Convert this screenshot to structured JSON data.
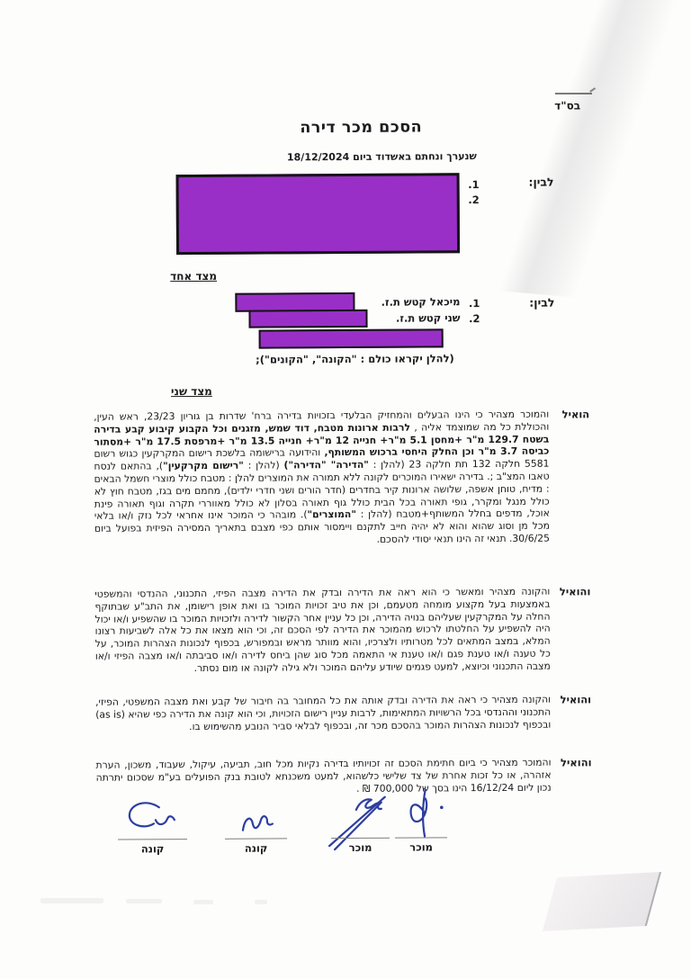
{
  "page": {
    "bsd": "בס\"ד",
    "title": "הסכם מכר דירה",
    "subtitle": "שנערך ונחתם באשדוד ביום  18/12/2024",
    "redaction_color": "#9a2fc8",
    "ink_color": "#2e3e9f"
  },
  "parties": {
    "first": {
      "label": "לבין:",
      "items": [
        "1.",
        "2."
      ],
      "side_note": "מצד אחד"
    },
    "second": {
      "label": "לבין:",
      "items": [
        {
          "num": "1.",
          "name": "מיכאל קטש ת.ז."
        },
        {
          "num": "2.",
          "name": "שני קטש ת.ז."
        }
      ],
      "collective": "(להלן יקראו כולם : \"הקונה\", \"הקונים\");",
      "side_note": "מצד שני"
    }
  },
  "recitals": [
    {
      "label": "הואיל",
      "runs": [
        {
          "t": "והמוכר מצהיר כי הינו הבעלים והמחזיק הבלעדי בזכויות בדירה ברח' שדרות בן גוריון 23/23, ראש העין, והכוללת כל מה שמוצמד אליה , ",
          "b": false
        },
        {
          "t": "לרבות ארונות מטבח, דוד שמש, מזגנים וכל הקבוע קיבוע קבע בדירה בשטח 129.7 מ\"ר +מחסן 5.1 מ\"ר+ חנייה 12 מ\"ר+ חנייה 13.5 מ\"ר +מרפסת 17.5 מ\"ר +מסתור כביסה 3.7 מ\"ר וכן החלק היחסי ברכוש המשותף,",
          "b": true
        },
        {
          "t": " והידועה ברישומה בלשכת רישום המקרקעין כגוש רשום 5581 חלקה 132 תת חלקה 23 (להלן : ",
          "b": false
        },
        {
          "t": "\"הדירה\" \"הדירה\")",
          "b": true
        },
        {
          "t": " (להלן : ",
          "b": false
        },
        {
          "t": "\"רישום מקרקעין\"",
          "b": true
        },
        {
          "t": "), בהתאם לנסח טאבו המצ\"ב ;. בדירה ישאירו המוכרים לקונה ללא תמורה את המוצרים להלן : מטבח כולל מוצרי חשמל הבאים : מדיח, טוחן אשפה, שלושה ארונות קיר בחדרים (חדר הורים ושני חדרי ילדים), מחמם מים בגז, מטבח חוץ לא כולל מנגל ומקרר, גופי תאורה בכל הבית כולל גוף תאורה בסלון לא כולל מאווררי תקרה וגוף תאורה פינת אוכל, מדפים בחלל המשותף+מטבח (להלן : ",
          "b": false
        },
        {
          "t": "\"המוצרים\"",
          "b": true
        },
        {
          "t": ").  מובהר כי המוכר אינו אחראי לכל נזק ו/או בלאי מכל מן וסוג שהוא והוא לא יהיה חייב לתקנם ויימסור אותם כפי מצבם בתאריך המסירה הפיזית בפועל ביום 30/6/25. תנאי זה הינו תנאי יסודי להסכם.",
          "b": false
        }
      ]
    },
    {
      "label": "והואיל",
      "runs": [
        {
          "t": "והקונה מצהיר ומאשר כי הוא ראה את הדירה ובדק את הדירה מצבה הפיזי, התכנוני, ההנדסי והמשפטי באמצעות בעל מקצוע מומחה מטעמם, וכן את טיב זכויות המוכר בו ואת אופן רישומן, את התב\"ע שבתוקף החלה על המקרקעין שעליהם בנויה הדירה, וכן כל עניין אחר הקשור לדירה ולזכויות המוכר בו שהשפיע ו/או יכול היה להשפיע על החלטתו לרכוש מהמוכר את הדירה לפי הסכם זה, וכי הוא מצאו את כל אלה לשביעות רצונו המלא, במצב המתאים לכל מטרותיו ולצרכיו, והוא מוותר מראש ובמפורש, בכפוף לנכונות הצהרות המוכר, על כל טענה ו/או טענת פגם ו/או טענת אי התאמה מכל סוג שהן ביחס לדירה ו/או סביבתה ו/או מצבה הפיזי ו/או מצבה התכנוני וכיוצא, למעט פגמים שיודע עליהם המוכר ולא גילה לקונה או מום נסתר.",
          "b": false
        }
      ]
    },
    {
      "label": "והואיל",
      "runs": [
        {
          "t": "והקונה מצהיר כי ראה את הדירה ובדק אותה את כל המחובר בה חיבור של קבע ואת מצבה המשפטי, הפיזי, התכנוני וההנדסי בכל הרשויות המתאימות, לרבות עניין רישום הזכויות, וכי הוא קונה את הדירה כפי שהיא (as is) ובכפוף לנכונות הצהרות המוכר בהסכם מכר זה, ובכפוף לבלאי סביר הנובע מהשימוש בו.",
          "b": false
        }
      ]
    },
    {
      "label": "והואיל",
      "runs": [
        {
          "t": "והמוכר מצהיר כי ביום חתימת הסכם זה זכויותיו בדירה נקיות מכל חוב, תביעה, עיקול, שעבוד, משכון, הערת אזהרה, או כל זכות אחרת של צד שלישי כלשהוא, למעט משכנתא לטובת בנק הפועלים בע\"מ שסכום יתרתה נכון ליום 16/12/24 הינו בסך של 700,000 ₪ .",
          "b": false
        }
      ]
    }
  ],
  "signatures": [
    {
      "label": "מוכר"
    },
    {
      "label": "מוכר"
    },
    {
      "label": "קונה"
    },
    {
      "label": "קונה"
    }
  ]
}
